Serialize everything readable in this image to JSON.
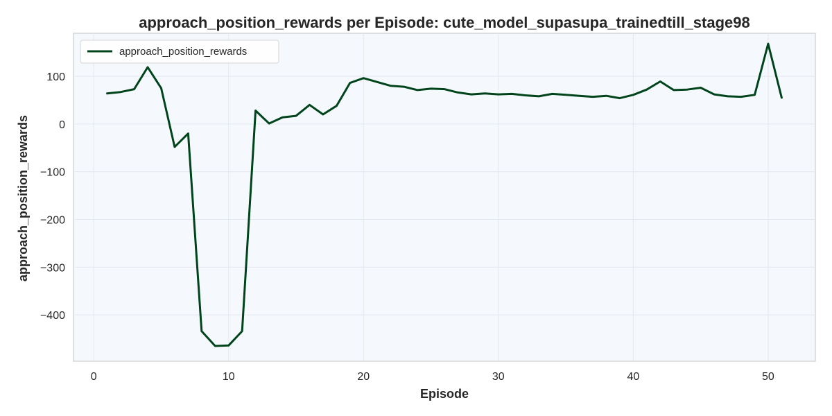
{
  "chart_data": {
    "type": "line",
    "title": "approach_position_rewards per Episode: cute_model_supasupa_trainedtill_stage98",
    "xlabel": "Episode",
    "ylabel": "approach_position_rewards",
    "xlim": [
      -1.5,
      53.5
    ],
    "ylim": [
      -497,
      190
    ],
    "xticks": [
      0,
      10,
      20,
      30,
      40,
      50
    ],
    "yticks": [
      100,
      0,
      -100,
      -200,
      -300,
      -400
    ],
    "ytick_labels": [
      "100",
      "0",
      "−100",
      "−200",
      "−300",
      "−400"
    ],
    "grid": true,
    "legend_position": "top-left",
    "background": "#f5f9fd",
    "series": [
      {
        "name": "approach_position_rewards",
        "color": "#00441b",
        "x": [
          1,
          2,
          3,
          4,
          5,
          6,
          7,
          8,
          9,
          10,
          11,
          12,
          13,
          14,
          15,
          16,
          17,
          18,
          19,
          20,
          21,
          22,
          23,
          24,
          25,
          26,
          27,
          28,
          29,
          30,
          31,
          32,
          33,
          34,
          35,
          36,
          37,
          38,
          39,
          40,
          41,
          42,
          43,
          44,
          45,
          46,
          47,
          48,
          49,
          50,
          51
        ],
        "y": [
          64,
          67,
          73,
          119,
          75,
          -48,
          -20,
          -434,
          -465,
          -464,
          -434,
          28,
          1,
          14,
          17,
          40,
          20,
          38,
          86,
          96,
          88,
          80,
          78,
          71,
          74,
          73,
          66,
          62,
          64,
          62,
          63,
          60,
          58,
          63,
          61,
          59,
          57,
          59,
          54,
          61,
          72,
          89,
          71,
          72,
          76,
          62,
          58,
          57,
          61,
          168,
          55
        ]
      }
    ]
  }
}
